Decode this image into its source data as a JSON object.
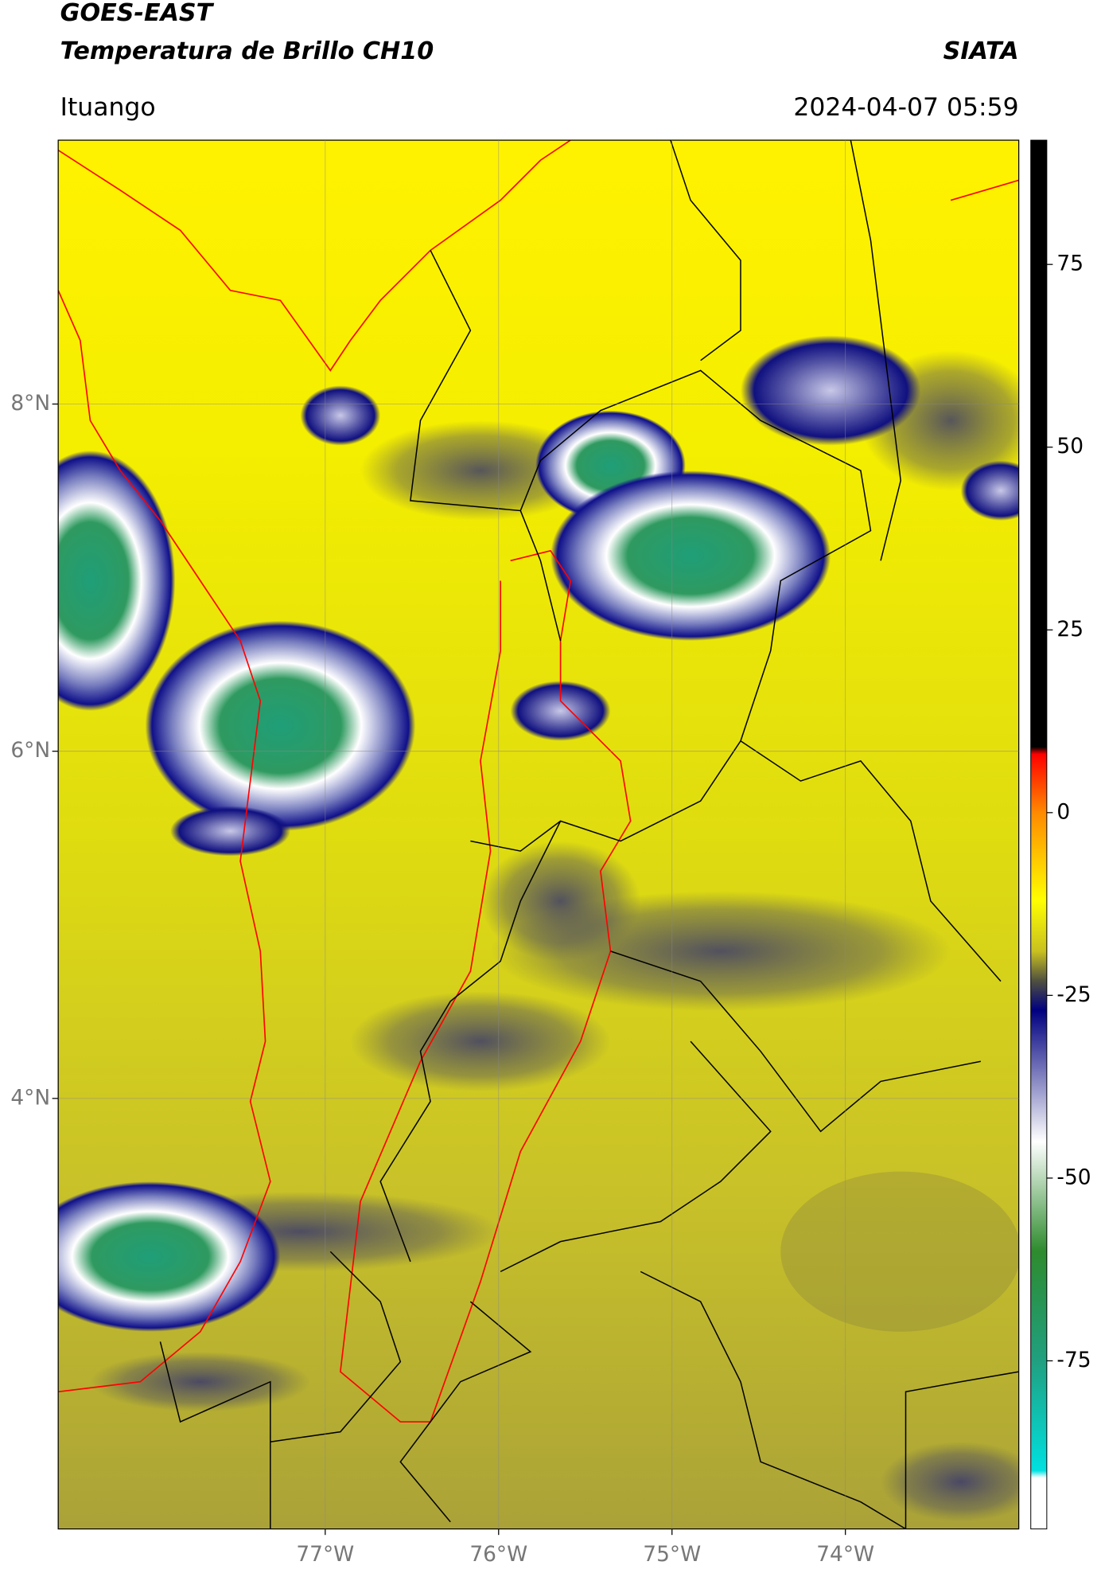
{
  "header": {
    "title": "GOES-EAST",
    "subtitle": "Temperatura de Brillo CH10",
    "agency": "SIATA",
    "location": "Ituango",
    "datetime": "2024-04-07 05:59"
  },
  "map": {
    "xlim": [
      -78.54,
      -73.0
    ],
    "ylim": [
      1.52,
      9.52
    ],
    "grid": true,
    "xticks": [
      {
        "value": -77,
        "label": "77°W"
      },
      {
        "value": -76,
        "label": "76°W"
      },
      {
        "value": -75,
        "label": "75°W"
      },
      {
        "value": -74,
        "label": "74°W"
      }
    ],
    "yticks": [
      {
        "value": 8,
        "label": "8°N"
      },
      {
        "value": 6,
        "label": "6°N"
      },
      {
        "value": 4,
        "label": "4°N"
      }
    ]
  },
  "colorbar": {
    "lim": [
      -98,
      92
    ],
    "ticks": [
      75,
      50,
      25,
      0,
      -25,
      -50,
      -75
    ],
    "stops": [
      {
        "value": 92,
        "color": "#000000"
      },
      {
        "value": 9,
        "color": "#000000"
      },
      {
        "value": 8,
        "color": "#ff0000"
      },
      {
        "value": 0,
        "color": "#ff8a00"
      },
      {
        "value": -12,
        "color": "#ffff00"
      },
      {
        "value": -19,
        "color": "#c8c020"
      },
      {
        "value": -23,
        "color": "#505040"
      },
      {
        "value": -27,
        "color": "#000080"
      },
      {
        "value": -45,
        "color": "#ffffff"
      },
      {
        "value": -60,
        "color": "#2e8b2e"
      },
      {
        "value": -75,
        "color": "#20a080"
      },
      {
        "value": -90,
        "color": "#00e0e0"
      },
      {
        "value": -91,
        "color": "#ffffff"
      },
      {
        "value": -98,
        "color": "#ffffff"
      }
    ]
  }
}
